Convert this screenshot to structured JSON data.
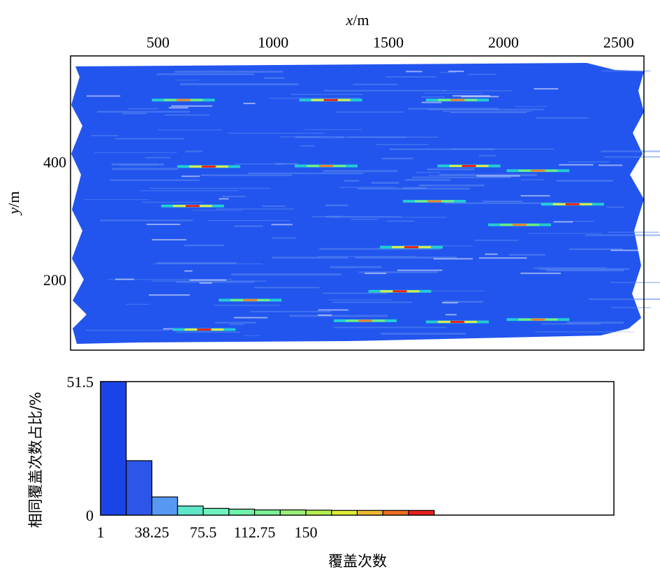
{
  "chart_data": [
    {
      "type": "heatmap",
      "xlabel_var": "x",
      "xlabel_unit": "/m",
      "ylabel_var": "y",
      "ylabel_unit": "/m",
      "x_ticks": [
        "500",
        "1000",
        "1500",
        "2000",
        "2500"
      ],
      "x_tick_values": [
        500,
        1000,
        1500,
        2000,
        2500
      ],
      "y_ticks": [
        "400",
        "200"
      ],
      "y_tick_values": [
        400,
        200
      ],
      "xlim": [
        120,
        2610
      ],
      "ylim": [
        80,
        580
      ],
      "x_axis_position": "top",
      "grid": false,
      "colors": {
        "background": "#2255ee",
        "light": "#5c8bf0",
        "cyan": "#22e0d0",
        "green": "#7cf07a",
        "yellow": "#f0f040",
        "orange": "#f08030",
        "red": "#e82020",
        "gap": "#ffffff"
      },
      "hotspots": [
        {
          "x": 610,
          "y": 505
        },
        {
          "x": 1250,
          "y": 505
        },
        {
          "x": 1800,
          "y": 505
        },
        {
          "x": 720,
          "y": 392
        },
        {
          "x": 1230,
          "y": 393
        },
        {
          "x": 1850,
          "y": 393
        },
        {
          "x": 2150,
          "y": 385
        },
        {
          "x": 650,
          "y": 325
        },
        {
          "x": 1700,
          "y": 333
        },
        {
          "x": 2300,
          "y": 328
        },
        {
          "x": 2070,
          "y": 293
        },
        {
          "x": 1600,
          "y": 255
        },
        {
          "x": 900,
          "y": 165
        },
        {
          "x": 1550,
          "y": 180
        },
        {
          "x": 1400,
          "y": 130
        },
        {
          "x": 1800,
          "y": 128
        },
        {
          "x": 2150,
          "y": 132
        },
        {
          "x": 700,
          "y": 115
        }
      ]
    },
    {
      "type": "bar",
      "ylabel": "相同覆盖次数占比/%",
      "xlabel": "覆盖次数",
      "x_ticks": [
        "1",
        "38.25",
        "75.5",
        "112.75",
        "150"
      ],
      "y_ticks": [
        "51.5",
        "0"
      ],
      "ylim": [
        0,
        51.5
      ],
      "xlim_bins": [
        0,
        20
      ],
      "values": [
        51.5,
        21.0,
        7.0,
        3.5,
        2.6,
        2.3,
        2.0,
        2.0,
        1.9,
        1.8,
        1.8,
        1.8,
        1.8
      ],
      "bar_colors": [
        "#1b44e8",
        "#2d55e8",
        "#5799f2",
        "#5ee6c7",
        "#6ff2bd",
        "#70f2aa",
        "#78f294",
        "#9af07a",
        "#b5f050",
        "#ddee36",
        "#f0b830",
        "#f06e20",
        "#e81f1f"
      ]
    }
  ]
}
